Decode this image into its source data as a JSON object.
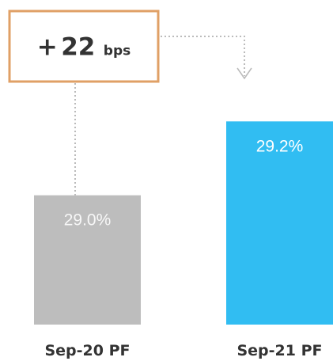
{
  "chart_data": {
    "type": "bar",
    "categories": [
      "Sep-20 PF",
      "Sep-21 PF"
    ],
    "values": [
      29.0,
      29.2
    ],
    "value_labels": [
      "29.0%",
      "29.2%"
    ],
    "bar_colors": [
      "#bdbdbd",
      "#31bdf2"
    ],
    "label_colors": [
      "#f7f7f7",
      "#ffffff"
    ],
    "title": "",
    "xlabel": "",
    "ylabel": "",
    "ylim": [
      28.65,
      29.25
    ],
    "grid": false,
    "legend": "none",
    "annotation": {
      "sign": "+",
      "number": "22",
      "unit": "bps",
      "border_color": "#e0a066",
      "connector_color": "#bbbbbb"
    }
  }
}
